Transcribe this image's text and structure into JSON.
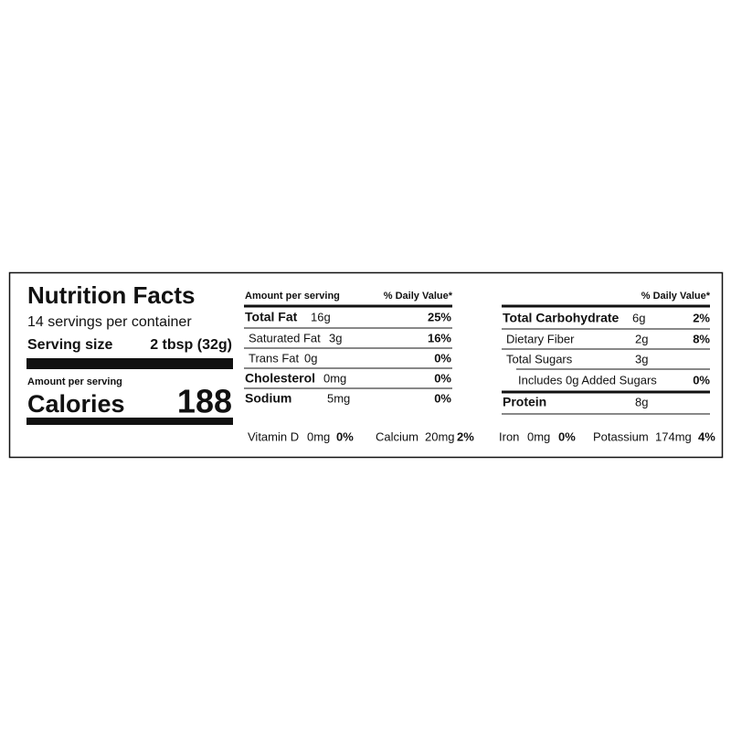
{
  "header": {
    "title": "Nutrition Facts",
    "servings": "14 servings per container",
    "serving_size_label": "Serving size",
    "serving_size": "2 tbsp (32g)",
    "amount_per_serving": "Amount per serving",
    "calories_label": "Calories",
    "calories": 188
  },
  "middle": {
    "amount_per_serving": "Amount per serving",
    "daily_value_header": "% Daily Value*",
    "rows": [
      {
        "name": "Total Fat",
        "amount": "16g",
        "dv": "25%"
      },
      {
        "name": "Saturated Fat",
        "amount": "3g",
        "dv": "16%"
      },
      {
        "name": "Trans Fat",
        "amount": "0g",
        "dv": "0%"
      },
      {
        "name": "Cholesterol",
        "amount": "0mg",
        "dv": "0%"
      },
      {
        "name": "Sodium",
        "amount": "5mg",
        "dv": "0%"
      }
    ]
  },
  "right": {
    "daily_value_header": "% Daily Value*",
    "rows": [
      {
        "name": "Total Carbohydrate",
        "amount": "6g",
        "dv": "2%"
      },
      {
        "name": "Dietary Fiber",
        "amount": "2g",
        "dv": "8%"
      },
      {
        "name": "Total Sugars",
        "amount": "3g"
      },
      {
        "name": "Includes 0g Added Sugars",
        "dv": "0%"
      },
      {
        "name": "Protein",
        "amount": "8g"
      }
    ]
  },
  "vitamins": [
    {
      "name": "Vitamin D",
      "amount": "0mg",
      "dv": "0%"
    },
    {
      "name": "Calcium",
      "amount": "20mg",
      "dv": "2%"
    },
    {
      "name": "Iron",
      "amount": "0mg",
      "dv": "0%"
    },
    {
      "name": "Potassium",
      "amount": "174mg",
      "dv": "4%"
    }
  ]
}
